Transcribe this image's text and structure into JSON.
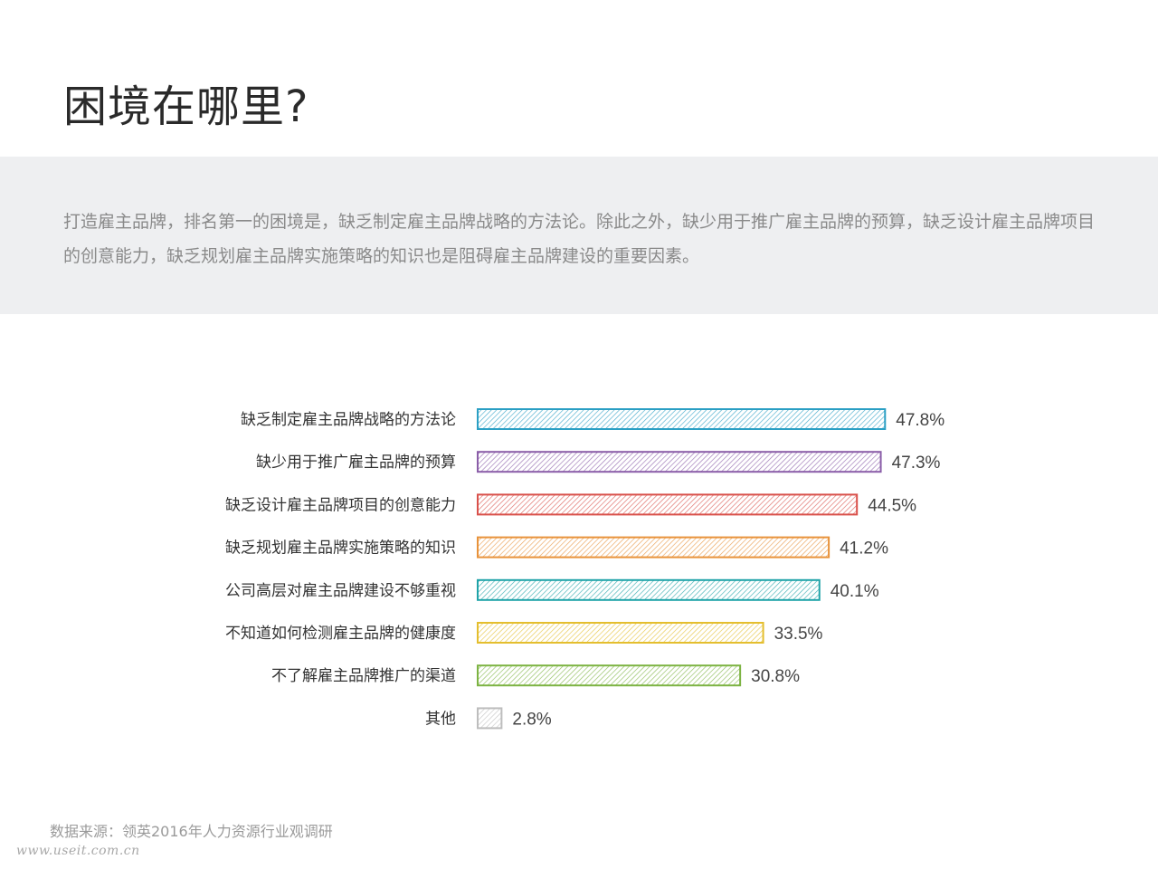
{
  "page": {
    "title": "困境在哪里?",
    "intro": "打造雇主品牌，排名第一的困境是，缺乏制定雇主品牌战略的方法论。除此之外，缺少用于推广雇主品牌的预算，缺乏设计雇主品牌项目的创意能力，缺乏规划雇主品牌实施策略的知识也是阻碍雇主品牌建设的重要因素。",
    "source": "数据来源：领英2016年人力资源行业观调研",
    "watermark": "www.useit.com.cn"
  },
  "chart_data": {
    "type": "bar",
    "orientation": "horizontal",
    "fill": "hatched",
    "categories": [
      "缺乏制定雇主品牌战略的方法论",
      "缺少用于推广雇主品牌的预算",
      "缺乏设计雇主品牌项目的创意能力",
      "缺乏规划雇主品牌实施策略的知识",
      "公司高层对雇主品牌建设不够重视",
      "不知道如何检测雇主品牌的健康度",
      "不了解雇主品牌推广的渠道",
      "其他"
    ],
    "values": [
      47.8,
      47.3,
      44.5,
      41.2,
      40.1,
      33.5,
      30.8,
      2.8
    ],
    "value_labels": [
      "47.8%",
      "47.3%",
      "44.5%",
      "41.2%",
      "40.1%",
      "33.5%",
      "30.8%",
      "2.8%"
    ],
    "colors": [
      "#2a9fc4",
      "#8a5da8",
      "#d9504a",
      "#e8923a",
      "#1fa3a8",
      "#e4be2e",
      "#7cb342",
      "#bdbdbd"
    ],
    "unit": "%",
    "grid": false,
    "legend": "none"
  }
}
